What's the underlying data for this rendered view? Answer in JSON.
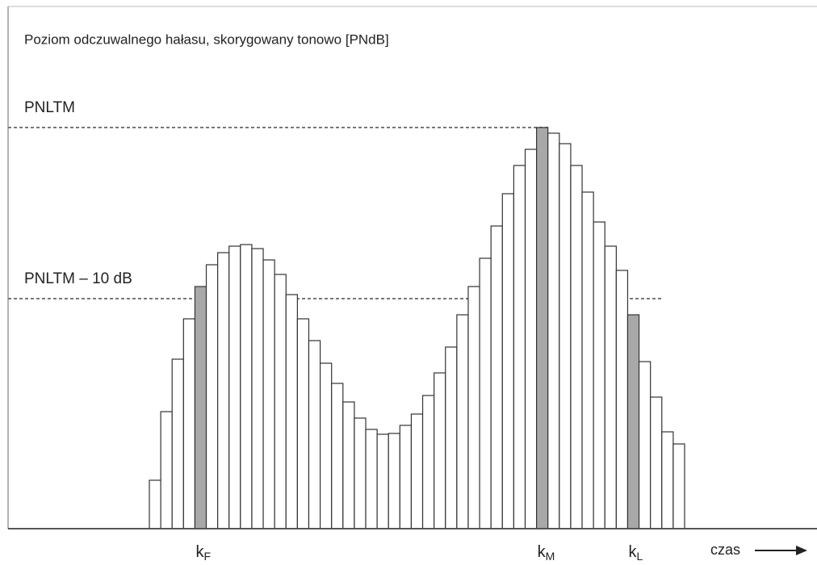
{
  "chart_data": {
    "type": "bar",
    "title": "Poziom odczuwalnego hałasu, skorygowany tonowo [PNdB]",
    "x_label": "czas",
    "categories": [
      null,
      null,
      null,
      null,
      {
        "text": "k",
        "subscript": "F"
      },
      null,
      null,
      null,
      null,
      null,
      null,
      null,
      null,
      null,
      null,
      null,
      null,
      null,
      null,
      null,
      null,
      null,
      null,
      null,
      null,
      null,
      null,
      null,
      null,
      null,
      null,
      null,
      null,
      null,
      {
        "text": "k",
        "subscript": "M"
      },
      null,
      null,
      null,
      null,
      null,
      null,
      null,
      {
        "text": "k",
        "subscript": "L"
      },
      null,
      null,
      null,
      null
    ],
    "values": [
      60,
      145,
      210,
      260,
      300,
      327,
      342,
      350,
      352,
      347,
      333,
      315,
      290,
      260,
      233,
      205,
      180,
      157,
      137,
      123,
      117,
      118,
      128,
      142,
      165,
      193,
      225,
      265,
      300,
      335,
      375,
      415,
      450,
      470,
      497,
      490,
      477,
      450,
      417,
      380,
      350,
      320,
      265,
      207,
      163,
      120,
      105
    ],
    "color": "#ffffff",
    "highlight_color": "#a8a8a8",
    "ylim": [
      0,
      645
    ],
    "reference_lines": [
      {
        "label": "PNLTM",
        "value": 497
      },
      {
        "label": "PNLTM – 10 dB",
        "value": 285
      }
    ]
  }
}
